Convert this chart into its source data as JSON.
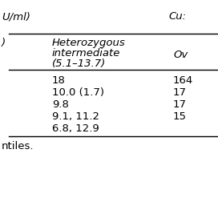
{
  "bg_color": "#ffffff",
  "header_line1": "U/ml)",
  "header_right": "Cu:",
  "col2_header_line1": "Heterozygous",
  "col2_header_line2": "intermediate",
  "col2_header_line3": "(5.1–13.7)",
  "col3_header": "Ov",
  "col1_label": ")",
  "rows": [
    {
      "col2": "18",
      "col3": "164"
    },
    {
      "col2": "10.0 (1.7)",
      "col3": "17"
    },
    {
      "col2": "9.8",
      "col3": "17"
    },
    {
      "col2": "9.1, 11.2",
      "col3": "15"
    },
    {
      "col2": "6.8, 12.9",
      "col3": ""
    }
  ],
  "footer": "ntiles.",
  "font_size": 9.5,
  "italic_font": "italic",
  "normal_font": "normal"
}
